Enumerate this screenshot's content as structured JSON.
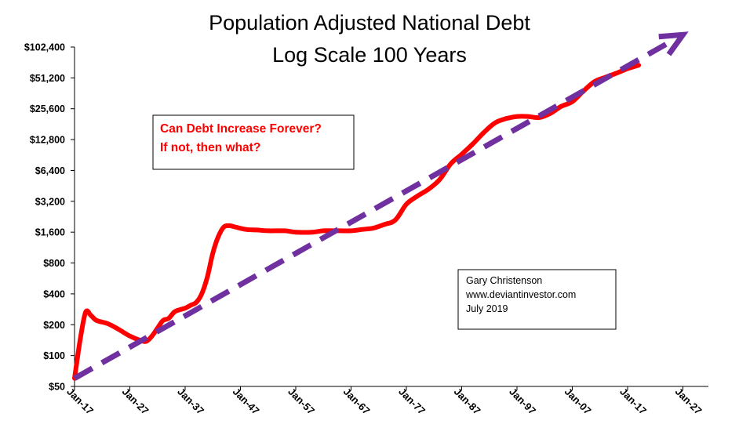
{
  "chart_data": {
    "type": "line",
    "title": "Population Adjusted National Debt",
    "subtitle": "Log Scale 100 Years",
    "xlabel": "",
    "ylabel": "",
    "y_scale": "log2",
    "ylim": [
      50,
      102400
    ],
    "y_ticks": [
      50,
      100,
      200,
      400,
      800,
      1600,
      3200,
      6400,
      12800,
      25600,
      51200,
      102400
    ],
    "y_tick_labels": [
      "$50",
      "$100",
      "$200",
      "$400",
      "$800",
      "$1,600",
      "$3,200",
      "$6,400",
      "$12,800",
      "$25,600",
      "$51,200",
      "$102,400"
    ],
    "x_ticks": [
      1917,
      1927,
      1937,
      1947,
      1957,
      1967,
      1977,
      1987,
      1997,
      2007,
      2017,
      2027
    ],
    "x_tick_labels": [
      "Jan-17",
      "Jan-27",
      "Jan-37",
      "Jan-47",
      "Jan-57",
      "Jan-67",
      "Jan-77",
      "Jan-87",
      "Jan-97",
      "Jan-07",
      "Jan-17",
      "Jan-27"
    ],
    "xlim": [
      1917,
      2027
    ],
    "grid": false,
    "series": [
      {
        "role": "actual",
        "color": "#ff0000",
        "style": "solid",
        "points": [
          [
            1917,
            60
          ],
          [
            1918,
            140
          ],
          [
            1919,
            265
          ],
          [
            1920,
            245
          ],
          [
            1921,
            220
          ],
          [
            1923,
            205
          ],
          [
            1925,
            180
          ],
          [
            1927,
            155
          ],
          [
            1929,
            140
          ],
          [
            1930,
            138
          ],
          [
            1931,
            155
          ],
          [
            1932,
            185
          ],
          [
            1933,
            220
          ],
          [
            1934,
            230
          ],
          [
            1935,
            265
          ],
          [
            1936,
            280
          ],
          [
            1937,
            290
          ],
          [
            1938,
            310
          ],
          [
            1939,
            330
          ],
          [
            1940,
            400
          ],
          [
            1941,
            580
          ],
          [
            1942,
            1000
          ],
          [
            1943,
            1450
          ],
          [
            1944,
            1800
          ],
          [
            1945,
            1850
          ],
          [
            1946,
            1800
          ],
          [
            1948,
            1700
          ],
          [
            1950,
            1680
          ],
          [
            1952,
            1650
          ],
          [
            1955,
            1650
          ],
          [
            1957,
            1600
          ],
          [
            1960,
            1600
          ],
          [
            1962,
            1650
          ],
          [
            1965,
            1650
          ],
          [
            1967,
            1650
          ],
          [
            1969,
            1700
          ],
          [
            1971,
            1750
          ],
          [
            1973,
            1900
          ],
          [
            1975,
            2100
          ],
          [
            1977,
            3000
          ],
          [
            1979,
            3600
          ],
          [
            1981,
            4200
          ],
          [
            1983,
            5200
          ],
          [
            1985,
            7400
          ],
          [
            1987,
            9200
          ],
          [
            1989,
            11600
          ],
          [
            1991,
            15000
          ],
          [
            1993,
            18600
          ],
          [
            1995,
            20500
          ],
          [
            1997,
            21500
          ],
          [
            1999,
            21500
          ],
          [
            2001,
            21000
          ],
          [
            2003,
            23000
          ],
          [
            2005,
            27000
          ],
          [
            2007,
            30000
          ],
          [
            2009,
            38000
          ],
          [
            2011,
            47000
          ],
          [
            2013,
            52000
          ],
          [
            2015,
            57000
          ],
          [
            2017,
            63000
          ],
          [
            2019,
            68000
          ]
        ]
      },
      {
        "role": "trend",
        "color": "#7030a0",
        "style": "dashed",
        "points": [
          [
            1917,
            60
          ],
          [
            2027,
            135000
          ]
        ]
      }
    ],
    "annotations": [
      {
        "lines": [
          "Can Debt Increase Forever?",
          "If not, then what?"
        ],
        "color": "#ff0000"
      },
      {
        "lines": [
          "Gary Christenson",
          "www.deviantinvestor.com",
          "July 2019"
        ],
        "color": "#000000"
      }
    ]
  }
}
